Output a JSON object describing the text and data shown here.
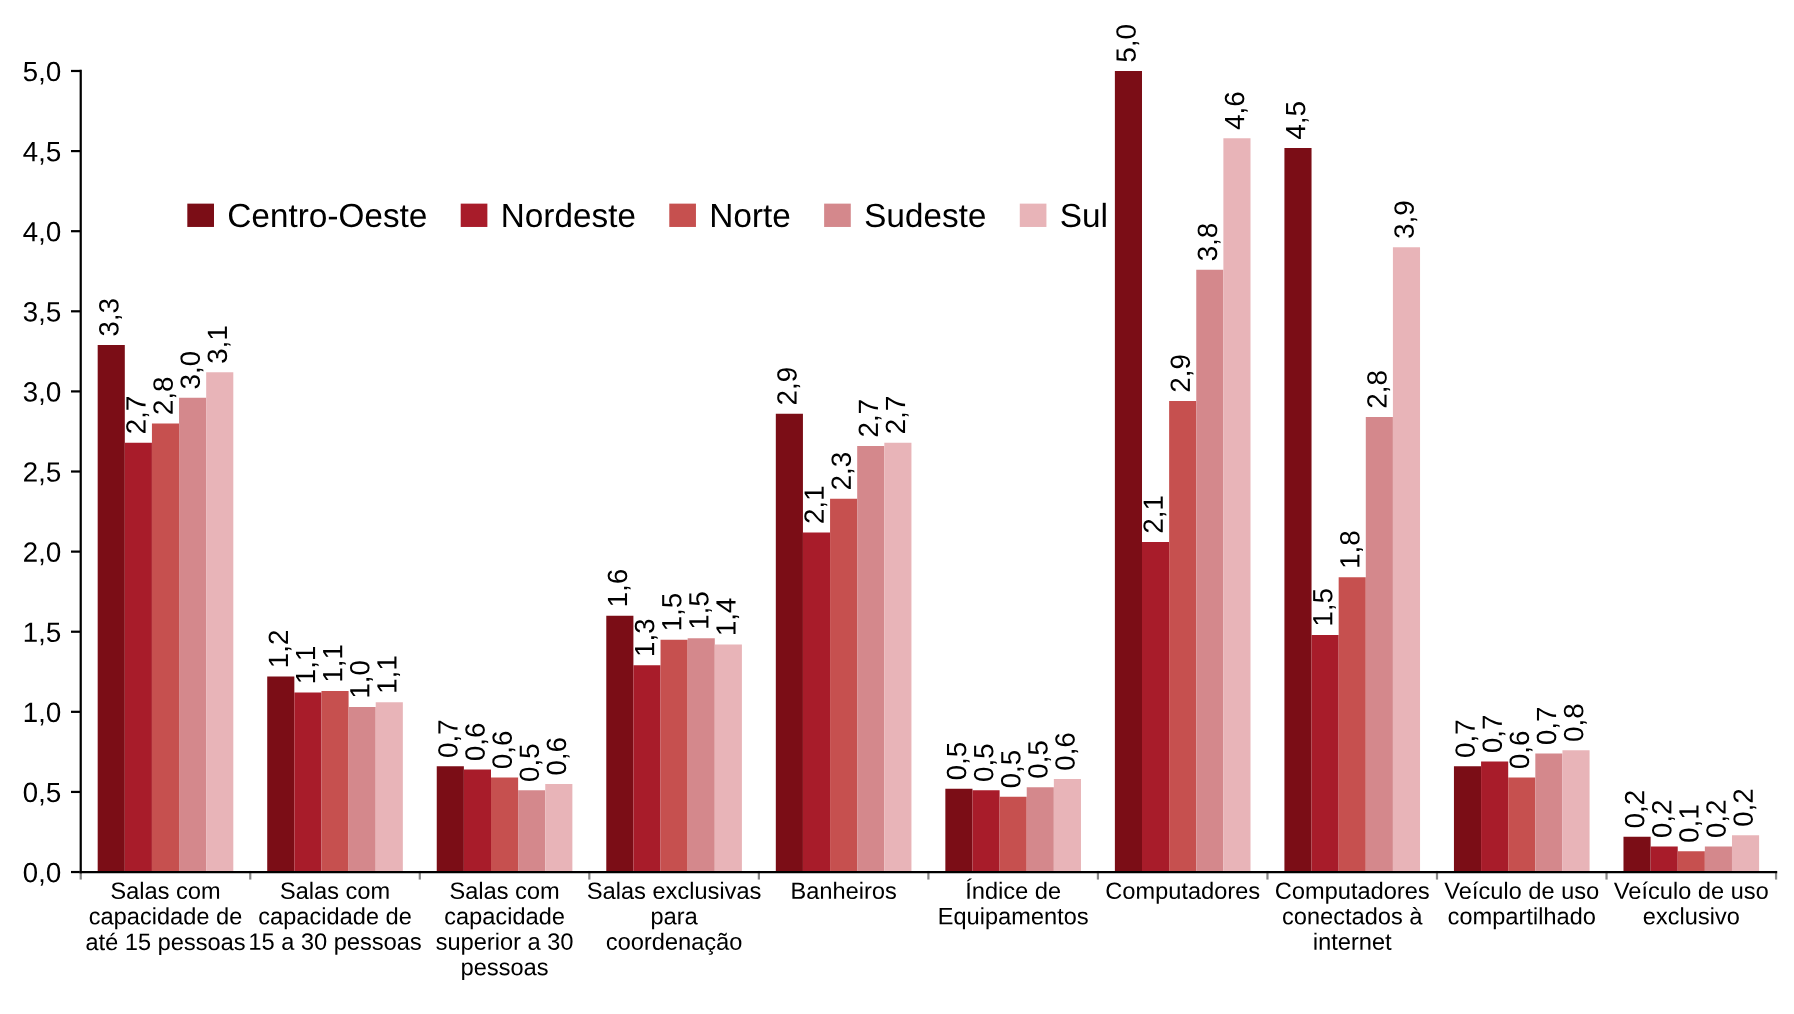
{
  "chart_data": {
    "type": "bar",
    "categories": [
      "Salas com\ncapacidade de\naté 15 pessoas",
      "Salas com\ncapacidade de\n15 a 30 pessoas",
      "Salas com\ncapacidade\nsuperior a 30\npessoas",
      "Salas exclusivas\npara\ncoordenação",
      "Banheiros",
      "Índice de\nEquipamentos",
      "Computadores",
      "Computadores\nconectados à\ninternet",
      "Veículo de uso\ncompartilhado",
      "Veículo de uso\nexclusivo"
    ],
    "series": [
      {
        "name": "Centro-Oeste",
        "color": "#7b0d16",
        "values": [
          3.29,
          1.22,
          0.66,
          1.6,
          2.86,
          0.52,
          5.0,
          4.52,
          0.66,
          0.22
        ],
        "value_labels": [
          "3,3",
          "1,2",
          "0,7",
          "1,6",
          "2,9",
          "0,5",
          "5,0",
          "4,5",
          "0,7",
          "0,2"
        ]
      },
      {
        "name": "Nordeste",
        "color": "#a81c2a",
        "values": [
          2.68,
          1.12,
          0.64,
          1.29,
          2.12,
          0.51,
          2.06,
          1.48,
          0.69,
          0.16
        ],
        "value_labels": [
          "2,7",
          "1,1",
          "0,6",
          "1,3",
          "2,1",
          "0,5",
          "2,1",
          "1,5",
          "0,7",
          "0,2"
        ]
      },
      {
        "name": "Norte",
        "color": "#c6504f",
        "values": [
          2.8,
          1.13,
          0.59,
          1.45,
          2.33,
          0.47,
          2.94,
          1.84,
          0.59,
          0.13
        ],
        "value_labels": [
          "2,8",
          "1,1",
          "0,6",
          "1,5",
          "2,3",
          "0,5",
          "2,9",
          "1,8",
          "0,6",
          "0,1"
        ]
      },
      {
        "name": "Sudeste",
        "color": "#d4888c",
        "values": [
          2.96,
          1.03,
          0.51,
          1.46,
          2.66,
          0.53,
          3.76,
          2.84,
          0.74,
          0.16
        ],
        "value_labels": [
          "3,0",
          "1,0",
          "0,5",
          "1,5",
          "2,7",
          "0,5",
          "3,8",
          "2,8",
          "0,7",
          "0,2"
        ]
      },
      {
        "name": "Sul",
        "color": "#e8b4b8",
        "values": [
          3.12,
          1.06,
          0.55,
          1.42,
          2.68,
          0.58,
          4.58,
          3.9,
          0.76,
          0.23
        ],
        "value_labels": [
          "3,1",
          "1,1",
          "0,6",
          "1,4",
          "2,7",
          "0,6",
          "4,6",
          "3,9",
          "0,8",
          "0,2"
        ]
      }
    ],
    "ylim": [
      0,
      5
    ],
    "yticks": [
      {
        "value": 0,
        "label": "0,0"
      },
      {
        "value": 0.5,
        "label": "0,5"
      },
      {
        "value": 1,
        "label": "1,0"
      },
      {
        "value": 1.5,
        "label": "1,5"
      },
      {
        "value": 2,
        "label": "2,0"
      },
      {
        "value": 2.5,
        "label": "2,5"
      },
      {
        "value": 3,
        "label": "3,0"
      },
      {
        "value": 3.5,
        "label": "3,5"
      },
      {
        "value": 4,
        "label": "4,0"
      },
      {
        "value": 4.5,
        "label": "4,5"
      },
      {
        "value": 5,
        "label": "5,0"
      }
    ],
    "legend": "top left",
    "grid": false
  }
}
